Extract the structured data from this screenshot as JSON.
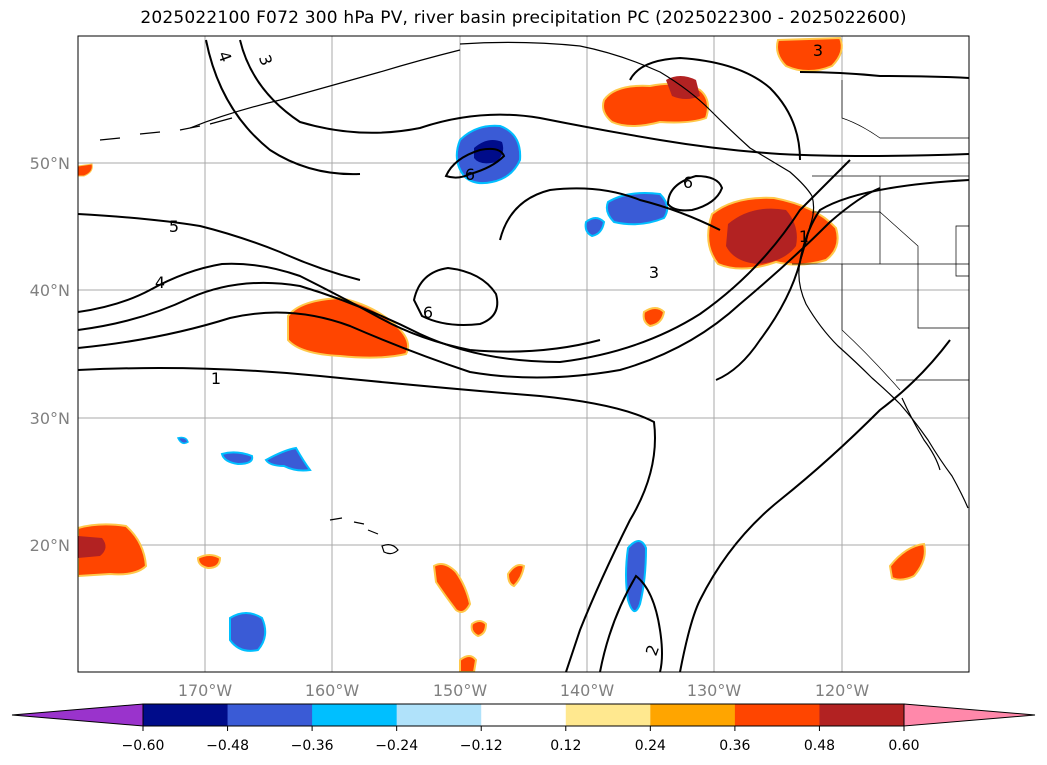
{
  "title": "2025022100 F072 300 hPa PV, river basin precipitation PC (2025022300 - 2025022600)",
  "map": {
    "projection": "PlateCarree",
    "lon_range": [
      -180,
      -110
    ],
    "lat_range": [
      10,
      60
    ],
    "lon_ticks": [
      "170°W",
      "160°W",
      "150°W",
      "140°W",
      "130°W",
      "120°W"
    ],
    "lat_ticks": [
      "50°N",
      "40°N",
      "30°N",
      "20°N"
    ],
    "grid": true
  },
  "contours": {
    "field": "300 hPa PV",
    "labels": [
      "4",
      "3",
      "5",
      "4",
      "6",
      "6",
      "6",
      "3",
      "1",
      "1",
      "3",
      "2"
    ]
  },
  "colorbar": {
    "extend": "both",
    "tick_labels": [
      "−0.60",
      "−0.48",
      "−0.36",
      "−0.24",
      "−0.12",
      "0.12",
      "0.24",
      "0.36",
      "0.48",
      "0.60"
    ],
    "colors": [
      "#9a33cc",
      "#000c8a",
      "#3a5bd6",
      "#00bfff",
      "#b0e2fa",
      "#ffffff",
      "#ffe88f",
      "#ffa500",
      "#ff4500",
      "#b22222",
      "#ff88aa"
    ]
  }
}
